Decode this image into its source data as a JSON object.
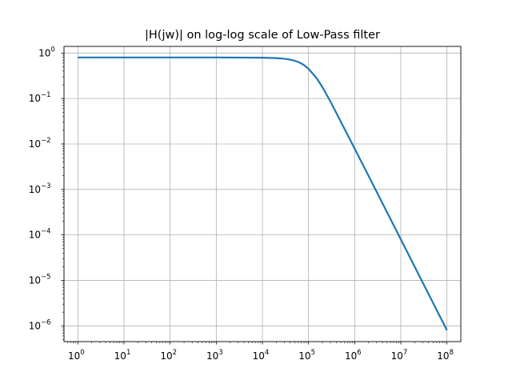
{
  "chart_data": {
    "type": "line",
    "title": "|H(jw)| on log-log scale of Low-Pass filter",
    "xlabel": "",
    "ylabel": "",
    "xscale": "log",
    "yscale": "log",
    "xlim": [
      0.5,
      200000000
    ],
    "ylim": [
      4.5e-07,
      1.4
    ],
    "x_tick_exponents": [
      0,
      1,
      2,
      3,
      4,
      5,
      6,
      7,
      8
    ],
    "y_tick_exponents": [
      0,
      -1,
      -2,
      -3,
      -4,
      -5,
      -6
    ],
    "tick_base": "10",
    "grid": true,
    "legend": false,
    "line_color": "#1f77b4",
    "grid_color": "#b0b0b0",
    "series": [
      {
        "x": [
          1,
          10,
          100,
          1000,
          10000,
          20000,
          30000,
          40000,
          50000,
          60000,
          70000,
          80000,
          100000,
          150000,
          200000,
          300000,
          500000,
          1000000,
          3000000,
          10000000,
          30000000,
          100000000
        ],
        "y": [
          0.8,
          0.8,
          0.8,
          0.8,
          0.79,
          0.774,
          0.75,
          0.717,
          0.678,
          0.635,
          0.59,
          0.543,
          0.45,
          0.28,
          0.178,
          0.085,
          0.031,
          0.00792,
          0.000887,
          8e-05,
          8.9e-06,
          8e-07
        ]
      }
    ]
  }
}
